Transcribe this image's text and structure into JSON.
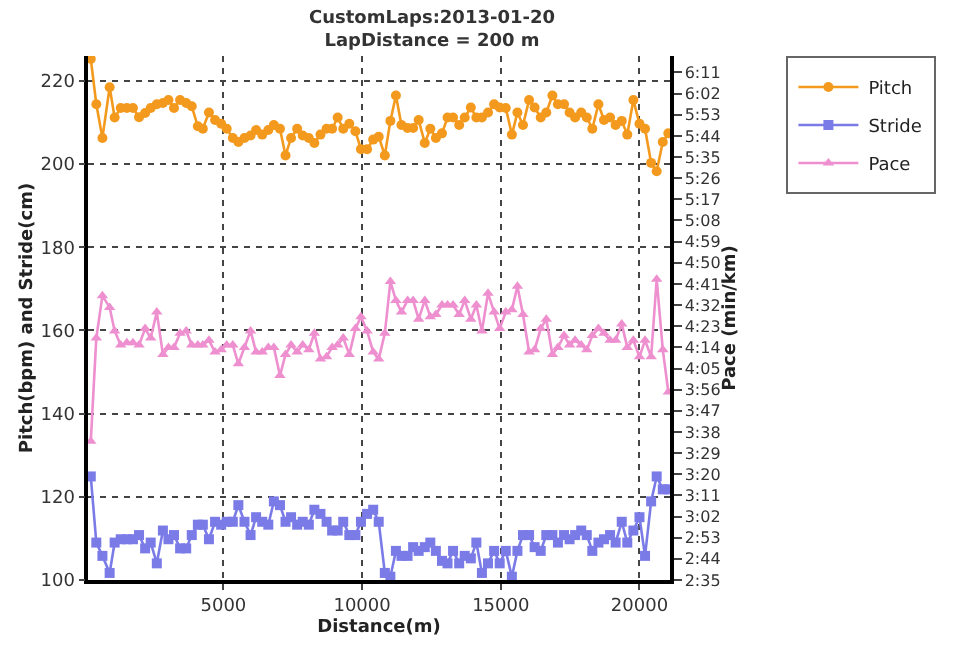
{
  "chart_data": {
    "type": "line",
    "title": "CustomLaps:2013-01-20",
    "subtitle": "LapDistance = 200 m",
    "xlabel": "Distance(m)",
    "ylabel": "Pitch(bpm) and Stride(cm)",
    "y2label": "Pace (min/km)",
    "x": [
      220,
      420,
      640,
      900,
      1080,
      1300,
      1520,
      1740,
      1960,
      2180,
      2380,
      2600,
      2820,
      3020,
      3220,
      3440,
      3660,
      3860,
      4080,
      4260,
      4480,
      4700,
      4920,
      5120,
      5340,
      5540,
      5760,
      5980,
      6180,
      6400,
      6620,
      6820,
      7040,
      7240,
      7440,
      7660,
      7860,
      8080,
      8280,
      8500,
      8720,
      8920,
      9120,
      9320,
      9540,
      9760,
      9960,
      10180,
      10400,
      10600,
      10820,
      11020,
      11220,
      11420,
      11640,
      11840,
      12040,
      12260,
      12460,
      12660,
      12880,
      13080,
      13280,
      13500,
      13700,
      13920,
      14120,
      14320,
      14540,
      14760,
      14960,
      15180,
      15400,
      15600,
      15800,
      16020,
      16220,
      16440,
      16640,
      16860,
      17060,
      17280,
      17480,
      17680,
      17900,
      18100,
      18300,
      18520,
      18720,
      18940,
      19140,
      19360,
      19560,
      19780,
      20000,
      20200,
      20420,
      20620,
      20840,
      21040
    ],
    "series": [
      {
        "name": "Pitch",
        "color": "#f39a1e",
        "marker": "circle",
        "values": [
          225.3,
          214.4,
          206.3,
          218.5,
          211.2,
          213.5,
          213.5,
          213.5,
          211.3,
          212.3,
          213.5,
          214.4,
          214.7,
          215.4,
          213.5,
          215.4,
          214.7,
          213.9,
          209.1,
          208.5,
          212.4,
          210.6,
          209.7,
          208.5,
          206.3,
          205.3,
          206.3,
          206.9,
          208.2,
          207.1,
          208.2,
          209.4,
          208.5,
          202.1,
          206.3,
          208.5,
          206.9,
          206.3,
          205.1,
          207.1,
          208.5,
          208.5,
          211.2,
          208.5,
          209.7,
          207.9,
          203.6,
          203.6,
          205.9,
          206.6,
          202.1,
          210.4,
          216.5,
          209.4,
          208.7,
          208.7,
          210.6,
          205.1,
          208.5,
          206.3,
          207.4,
          211.2,
          211.2,
          209.4,
          211.2,
          213.6,
          211.2,
          211.2,
          212.4,
          214.4,
          213.6,
          213.5,
          207.1,
          212.4,
          209.4,
          215.4,
          213.6,
          211.2,
          212.4,
          216.5,
          214.4,
          214.4,
          212.4,
          211.2,
          212.4,
          211.2,
          208.5,
          214.4,
          210.6,
          211.2,
          209.4,
          210.4,
          207.1,
          215.4,
          209.7,
          208.5,
          200.3,
          198.3,
          205.3,
          207.4
        ]
      },
      {
        "name": "Stride",
        "color": "#7b7be8",
        "marker": "square",
        "values": [
          124.9,
          109,
          105.8,
          101.7,
          109,
          109.8,
          109.8,
          109.8,
          110.8,
          107.6,
          109,
          104,
          111.9,
          109.8,
          110.8,
          107.6,
          107.6,
          110.8,
          113.3,
          113.3,
          109.8,
          114,
          113.3,
          114,
          114,
          118,
          114,
          110.8,
          115.1,
          114,
          113.3,
          118.9,
          118,
          114,
          115.1,
          113.3,
          114,
          113.3,
          116.9,
          115.9,
          114,
          111.9,
          111.9,
          114,
          110.8,
          110.8,
          114,
          115.9,
          116.9,
          114,
          101.7,
          100.8,
          107,
          105.8,
          105.8,
          107.9,
          107,
          107.9,
          109,
          107,
          104.6,
          104,
          107,
          104,
          105.8,
          105.2,
          109,
          101.7,
          104,
          107,
          104,
          107,
          100.8,
          107,
          110.8,
          110.8,
          107.9,
          107,
          110.8,
          110.8,
          109,
          110.8,
          109.8,
          110.8,
          111.9,
          110.8,
          107,
          109,
          109.8,
          110.8,
          109,
          114,
          109,
          111.9,
          115.1,
          105.8,
          118.9,
          124.9,
          121.8,
          121.8
        ]
      },
      {
        "name": "Pace",
        "color": "#ee8fcf",
        "marker": "triangle",
        "axis": "y2",
        "values": [
          214,
          258,
          276,
          271,
          261,
          255,
          256,
          256,
          255,
          262,
          258,
          269,
          251,
          254,
          254,
          260,
          261,
          255,
          255,
          255,
          257,
          252,
          253,
          255,
          255,
          247,
          254,
          261,
          252,
          252,
          254,
          254,
          242,
          251,
          255,
          252,
          255,
          253,
          260,
          249,
          250,
          254,
          255,
          258,
          251,
          262,
          267,
          261,
          252,
          249,
          260,
          282,
          274,
          269,
          274,
          274,
          266,
          274,
          267,
          268,
          272,
          272,
          272,
          268,
          274,
          266,
          272,
          261,
          277,
          269,
          262,
          269,
          270,
          280,
          268,
          252,
          253,
          262,
          266,
          251,
          254,
          259,
          255,
          257,
          255,
          253,
          259,
          262,
          260,
          257,
          257,
          264,
          254,
          257,
          250,
          257,
          250,
          283,
          253,
          235
        ]
      }
    ],
    "xlim": [
      120,
      21100
    ],
    "xticks": [
      5000,
      10000,
      15000,
      20000
    ],
    "ylim": [
      100,
      226
    ],
    "yticks": [
      100,
      120,
      140,
      160,
      180,
      200,
      220
    ],
    "y2lim": [
      155,
      378
    ],
    "y2ticks": [
      {
        "value": 155,
        "label": "2:35"
      },
      {
        "value": 164,
        "label": "2:44"
      },
      {
        "value": 173,
        "label": "2:53"
      },
      {
        "value": 182,
        "label": "3:02"
      },
      {
        "value": 191,
        "label": "3:11"
      },
      {
        "value": 200,
        "label": "3:20"
      },
      {
        "value": 209,
        "label": "3:29"
      },
      {
        "value": 218,
        "label": "3:38"
      },
      {
        "value": 227,
        "label": "3:47"
      },
      {
        "value": 236,
        "label": "3:56"
      },
      {
        "value": 245,
        "label": "4:05"
      },
      {
        "value": 254,
        "label": "4:14"
      },
      {
        "value": 263,
        "label": "4:23"
      },
      {
        "value": 272,
        "label": "4:32"
      },
      {
        "value": 281,
        "label": "4:41"
      },
      {
        "value": 290,
        "label": "4:50"
      },
      {
        "value": 299,
        "label": "4:59"
      },
      {
        "value": 308,
        "label": "5:08"
      },
      {
        "value": 317,
        "label": "5:17"
      },
      {
        "value": 326,
        "label": "5:26"
      },
      {
        "value": 335,
        "label": "5:35"
      },
      {
        "value": 344,
        "label": "5:44"
      },
      {
        "value": 353,
        "label": "5:53"
      },
      {
        "value": 362,
        "label": "6:02"
      },
      {
        "value": 371,
        "label": "6:11"
      }
    ],
    "grid": true,
    "legend": "top right",
    "line_style": "solid"
  }
}
